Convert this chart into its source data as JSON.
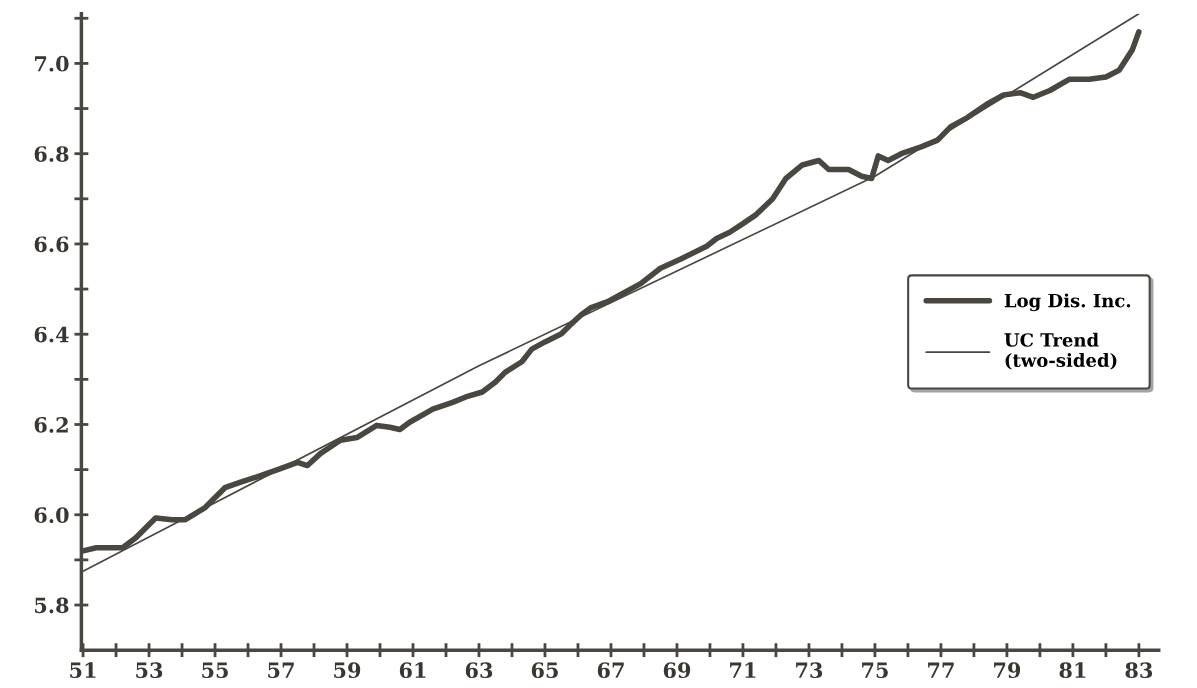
{
  "chart_data": {
    "type": "line",
    "legend": "center right",
    "grid": false,
    "line_style": "solid",
    "marker": "none",
    "xlim": [
      50.95,
      83.6
    ],
    "ylim": [
      5.7,
      7.11
    ],
    "xticks": [
      51,
      {
        "value": 52,
        "label": null
      },
      53,
      {
        "value": 54,
        "label": null
      },
      55,
      {
        "value": 56,
        "label": null
      },
      57,
      {
        "value": 58,
        "label": null
      },
      59,
      {
        "value": 60,
        "label": null
      },
      61,
      {
        "value": 62,
        "label": null
      },
      63,
      {
        "value": 64,
        "label": null
      },
      65,
      {
        "value": 66,
        "label": null
      },
      67,
      {
        "value": 68,
        "label": null
      },
      69,
      {
        "value": 70,
        "label": null
      },
      71,
      {
        "value": 72,
        "label": null
      },
      73,
      {
        "value": 74,
        "label": null
      },
      75,
      {
        "value": 76,
        "label": null
      },
      77,
      {
        "value": 78,
        "label": null
      },
      79,
      {
        "value": 80,
        "label": null
      },
      81,
      {
        "value": 82,
        "label": null
      },
      83
    ],
    "yticks": [
      {
        "value": 5.8,
        "label": "5.8"
      },
      {
        "value": 5.9,
        "label": null
      },
      {
        "value": 6.0,
        "label": "6.0"
      },
      {
        "value": 6.1,
        "label": null
      },
      {
        "value": 6.2,
        "label": "6.2"
      },
      {
        "value": 6.3,
        "label": null
      },
      {
        "value": 6.4,
        "label": "6.4"
      },
      {
        "value": 6.5,
        "label": null
      },
      {
        "value": 6.6,
        "label": "6.6"
      },
      {
        "value": 6.7,
        "label": null
      },
      {
        "value": 6.8,
        "label": "6.8"
      },
      {
        "value": 6.9,
        "label": null
      },
      {
        "value": 7.0,
        "label": "7.0"
      },
      {
        "value": 7.1,
        "label": null
      }
    ],
    "series": [
      {
        "name": "Log Dis. Inc.",
        "color": "#4a4640",
        "x": [
          51.0,
          51.4,
          52.2,
          52.6,
          53.2,
          53.7,
          54.1,
          54.7,
          55.3,
          55.8,
          56.4,
          56.9,
          57.5,
          57.8,
          58.2,
          58.8,
          59.3,
          59.9,
          60.3,
          60.6,
          60.9,
          61.6,
          62.2,
          62.6,
          63.1,
          63.5,
          63.8,
          64.3,
          64.6,
          65.0,
          65.5,
          65.8,
          66.1,
          66.4,
          66.9,
          67.3,
          67.9,
          68.5,
          69.1,
          69.9,
          70.2,
          70.6,
          71.0,
          71.4,
          71.9,
          72.3,
          72.8,
          73.3,
          73.6,
          74.2,
          74.6,
          74.9,
          75.1,
          75.4,
          75.8,
          76.4,
          76.9,
          77.3,
          77.8,
          78.4,
          78.9,
          79.4,
          79.8,
          80.3,
          80.9,
          81.5,
          82.0,
          82.4,
          82.8,
          83.0
        ],
        "values": [
          5.92,
          5.927,
          5.927,
          5.949,
          5.993,
          5.989,
          5.989,
          6.016,
          6.06,
          6.073,
          6.087,
          6.1,
          6.116,
          6.109,
          6.136,
          6.165,
          6.171,
          6.198,
          6.194,
          6.189,
          6.205,
          6.234,
          6.249,
          6.261,
          6.272,
          6.294,
          6.316,
          6.339,
          6.367,
          6.383,
          6.401,
          6.423,
          6.443,
          6.459,
          6.472,
          6.488,
          6.512,
          6.546,
          6.566,
          6.595,
          6.612,
          6.626,
          6.645,
          6.665,
          6.7,
          6.745,
          6.775,
          6.785,
          6.765,
          6.765,
          6.75,
          6.745,
          6.795,
          6.785,
          6.8,
          6.815,
          6.83,
          6.86,
          6.88,
          6.91,
          6.93,
          6.935,
          6.925,
          6.94,
          6.965,
          6.965,
          6.97,
          6.985,
          7.03,
          7.07
        ]
      },
      {
        "name": "UC Trend\n(two-sided)",
        "color": "#4a4640",
        "x": [
          51.0,
          63.0,
          75.0,
          83.0
        ],
        "values": [
          5.875,
          6.33,
          6.75,
          7.11
        ]
      }
    ]
  }
}
